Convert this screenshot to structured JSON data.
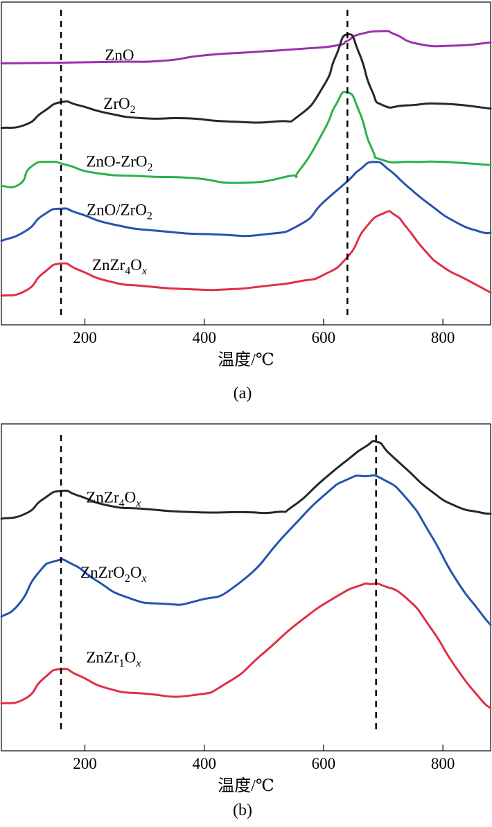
{
  "chart_data": [
    {
      "type": "line",
      "panel": "(a)",
      "xlabel": "温度/℃",
      "ylabel": "",
      "xlim": [
        60,
        880
      ],
      "ylim": [
        0,
        100
      ],
      "x_ticks": [
        200,
        400,
        600,
        800
      ],
      "x_tick_labels": [
        "200",
        "400",
        "600",
        "800"
      ],
      "reference_lines": [
        160,
        640
      ],
      "series": [
        {
          "name": "ZnO",
          "label_parts": [
            {
              "t": "ZnO",
              "s": ""
            }
          ],
          "color": "#9b2fae",
          "label_anchor": [
            258,
            82
          ],
          "x": [
            60,
            150,
            250,
            330,
            400,
            480,
            560,
            620,
            640,
            660,
            700,
            720,
            760,
            820,
            880
          ],
          "y": [
            81,
            81.2,
            81.5,
            81.8,
            83.5,
            84.5,
            85.5,
            86.5,
            88,
            90,
            91,
            90,
            87,
            86.5,
            87.5
          ]
        },
        {
          "name": "ZrO2",
          "label_parts": [
            {
              "t": "ZrO",
              "s": ""
            },
            {
              "t": "2",
              "s": "sub"
            }
          ],
          "color": "#1f2b2b",
          "label_anchor": [
            258,
            67
          ],
          "x": [
            60,
            100,
            130,
            160,
            190,
            240,
            300,
            370,
            440,
            520,
            560,
            600,
            620,
            640,
            660,
            680,
            700,
            740,
            800,
            880
          ],
          "y": [
            61,
            62,
            66,
            69,
            68,
            65.5,
            64,
            64,
            63,
            63,
            65,
            74,
            83,
            90,
            84,
            73,
            68,
            68,
            68.5,
            67
          ]
        },
        {
          "name": "ZnO-ZrO2",
          "label_parts": [
            {
              "t": "ZnO-ZrO",
              "s": ""
            },
            {
              "t": "2",
              "s": "sub"
            }
          ],
          "color": "#2ab24a",
          "label_anchor": [
            258,
            49
          ],
          "x": [
            60,
            90,
            110,
            140,
            170,
            220,
            300,
            380,
            460,
            540,
            560,
            600,
            620,
            640,
            660,
            680,
            700,
            750,
            800,
            880
          ],
          "y": [
            43,
            43.5,
            49,
            50.5,
            49.5,
            47,
            46,
            45.5,
            44,
            46,
            48,
            60,
            68,
            72,
            66,
            55,
            51,
            50.5,
            50.5,
            49.5
          ]
        },
        {
          "name": "ZnO/ZrO2",
          "label_parts": [
            {
              "t": "ZnO/ZrO",
              "s": ""
            },
            {
              "t": "2",
              "s": "sub"
            }
          ],
          "color": "#2653b0",
          "label_anchor": [
            258,
            34
          ],
          "x": [
            60,
            100,
            130,
            160,
            190,
            250,
            330,
            420,
            500,
            560,
            600,
            640,
            660,
            685,
            710,
            740,
            780,
            820,
            860,
            880
          ],
          "y": [
            26,
            29,
            34,
            36,
            34.5,
            31,
            29,
            28,
            28,
            31,
            38,
            44.5,
            48,
            50.5,
            48,
            43,
            37,
            32,
            29,
            28.5
          ]
        },
        {
          "name": "ZnZr4Ox",
          "label_parts": [
            {
              "t": "ZnZr",
              "s": ""
            },
            {
              "t": "4",
              "s": "sub"
            },
            {
              "t": "O",
              "s": ""
            },
            {
              "t": "x",
              "s": "subi"
            }
          ],
          "color": "#e02f46",
          "label_anchor": [
            258,
            17
          ],
          "x": [
            60,
            100,
            130,
            160,
            190,
            240,
            300,
            380,
            440,
            500,
            560,
            600,
            640,
            670,
            700,
            720,
            740,
            770,
            800,
            840,
            880
          ],
          "y": [
            9,
            10.5,
            16,
            19,
            17,
            13.5,
            12,
            11,
            11,
            12,
            13.5,
            15.5,
            21,
            30,
            34.5,
            34,
            30,
            23,
            18,
            14,
            10
          ]
        }
      ]
    },
    {
      "type": "line",
      "panel": "(b)",
      "xlabel": "温度/℃",
      "ylabel": "",
      "xlim": [
        60,
        880
      ],
      "ylim": [
        0,
        100
      ],
      "x_ticks": [
        200,
        400,
        600,
        800
      ],
      "x_tick_labels": [
        "200",
        "400",
        "600",
        "800"
      ],
      "reference_lines": [
        160,
        688
      ],
      "series": [
        {
          "name": "ZnZr4Ox",
          "label_parts": [
            {
              "t": "ZnZr",
              "s": ""
            },
            {
              "t": "4",
              "s": "sub"
            },
            {
              "t": "O",
              "s": ""
            },
            {
              "t": "x",
              "s": "subi"
            }
          ],
          "color": "#1f2b2b",
          "label_anchor": [
            248,
            76
          ],
          "x": [
            60,
            100,
            130,
            160,
            190,
            240,
            300,
            380,
            460,
            520,
            550,
            600,
            640,
            670,
            690,
            710,
            740,
            780,
            820,
            860,
            880
          ],
          "y": [
            71,
            72.5,
            77,
            79.5,
            78,
            75,
            74,
            73,
            73,
            73,
            75,
            83,
            89,
            93,
            94.5,
            91,
            86,
            79.5,
            75,
            73,
            72.5
          ]
        },
        {
          "name": "ZnZrO2Ox",
          "label_parts": [
            {
              "t": "ZnZrO",
              "s": ""
            },
            {
              "t": "2",
              "s": "sub"
            },
            {
              "t": "O",
              "s": ""
            },
            {
              "t": "x",
              "s": "subi"
            }
          ],
          "color": "#2653b0",
          "label_anchor": [
            248,
            53
          ],
          "x": [
            60,
            90,
            120,
            150,
            180,
            220,
            270,
            330,
            390,
            460,
            540,
            600,
            640,
            670,
            700,
            740,
            780,
            820,
            860,
            880
          ],
          "y": [
            41,
            45,
            54,
            58,
            57,
            52,
            47,
            45,
            46,
            51.5,
            67,
            78,
            83,
            84,
            83,
            77,
            66,
            53,
            43,
            38.5
          ]
        },
        {
          "name": "ZnZr1Ox",
          "label_parts": [
            {
              "t": "ZnZr",
              "s": ""
            },
            {
              "t": "1",
              "s": "sub"
            },
            {
              "t": "O",
              "s": ""
            },
            {
              "t": "x",
              "s": "subi"
            }
          ],
          "color": "#e02f46",
          "label_anchor": [
            248,
            27
          ],
          "x": [
            60,
            100,
            130,
            160,
            190,
            240,
            300,
            380,
            440,
            500,
            560,
            620,
            660,
            680,
            700,
            740,
            780,
            820,
            860,
            880
          ],
          "y": [
            14.5,
            16,
            22,
            25,
            23,
            19,
            17.5,
            17,
            21,
            30,
            39.5,
            47,
            50.5,
            51,
            50.5,
            46.5,
            37.5,
            26,
            16.5,
            13
          ]
        }
      ]
    }
  ]
}
